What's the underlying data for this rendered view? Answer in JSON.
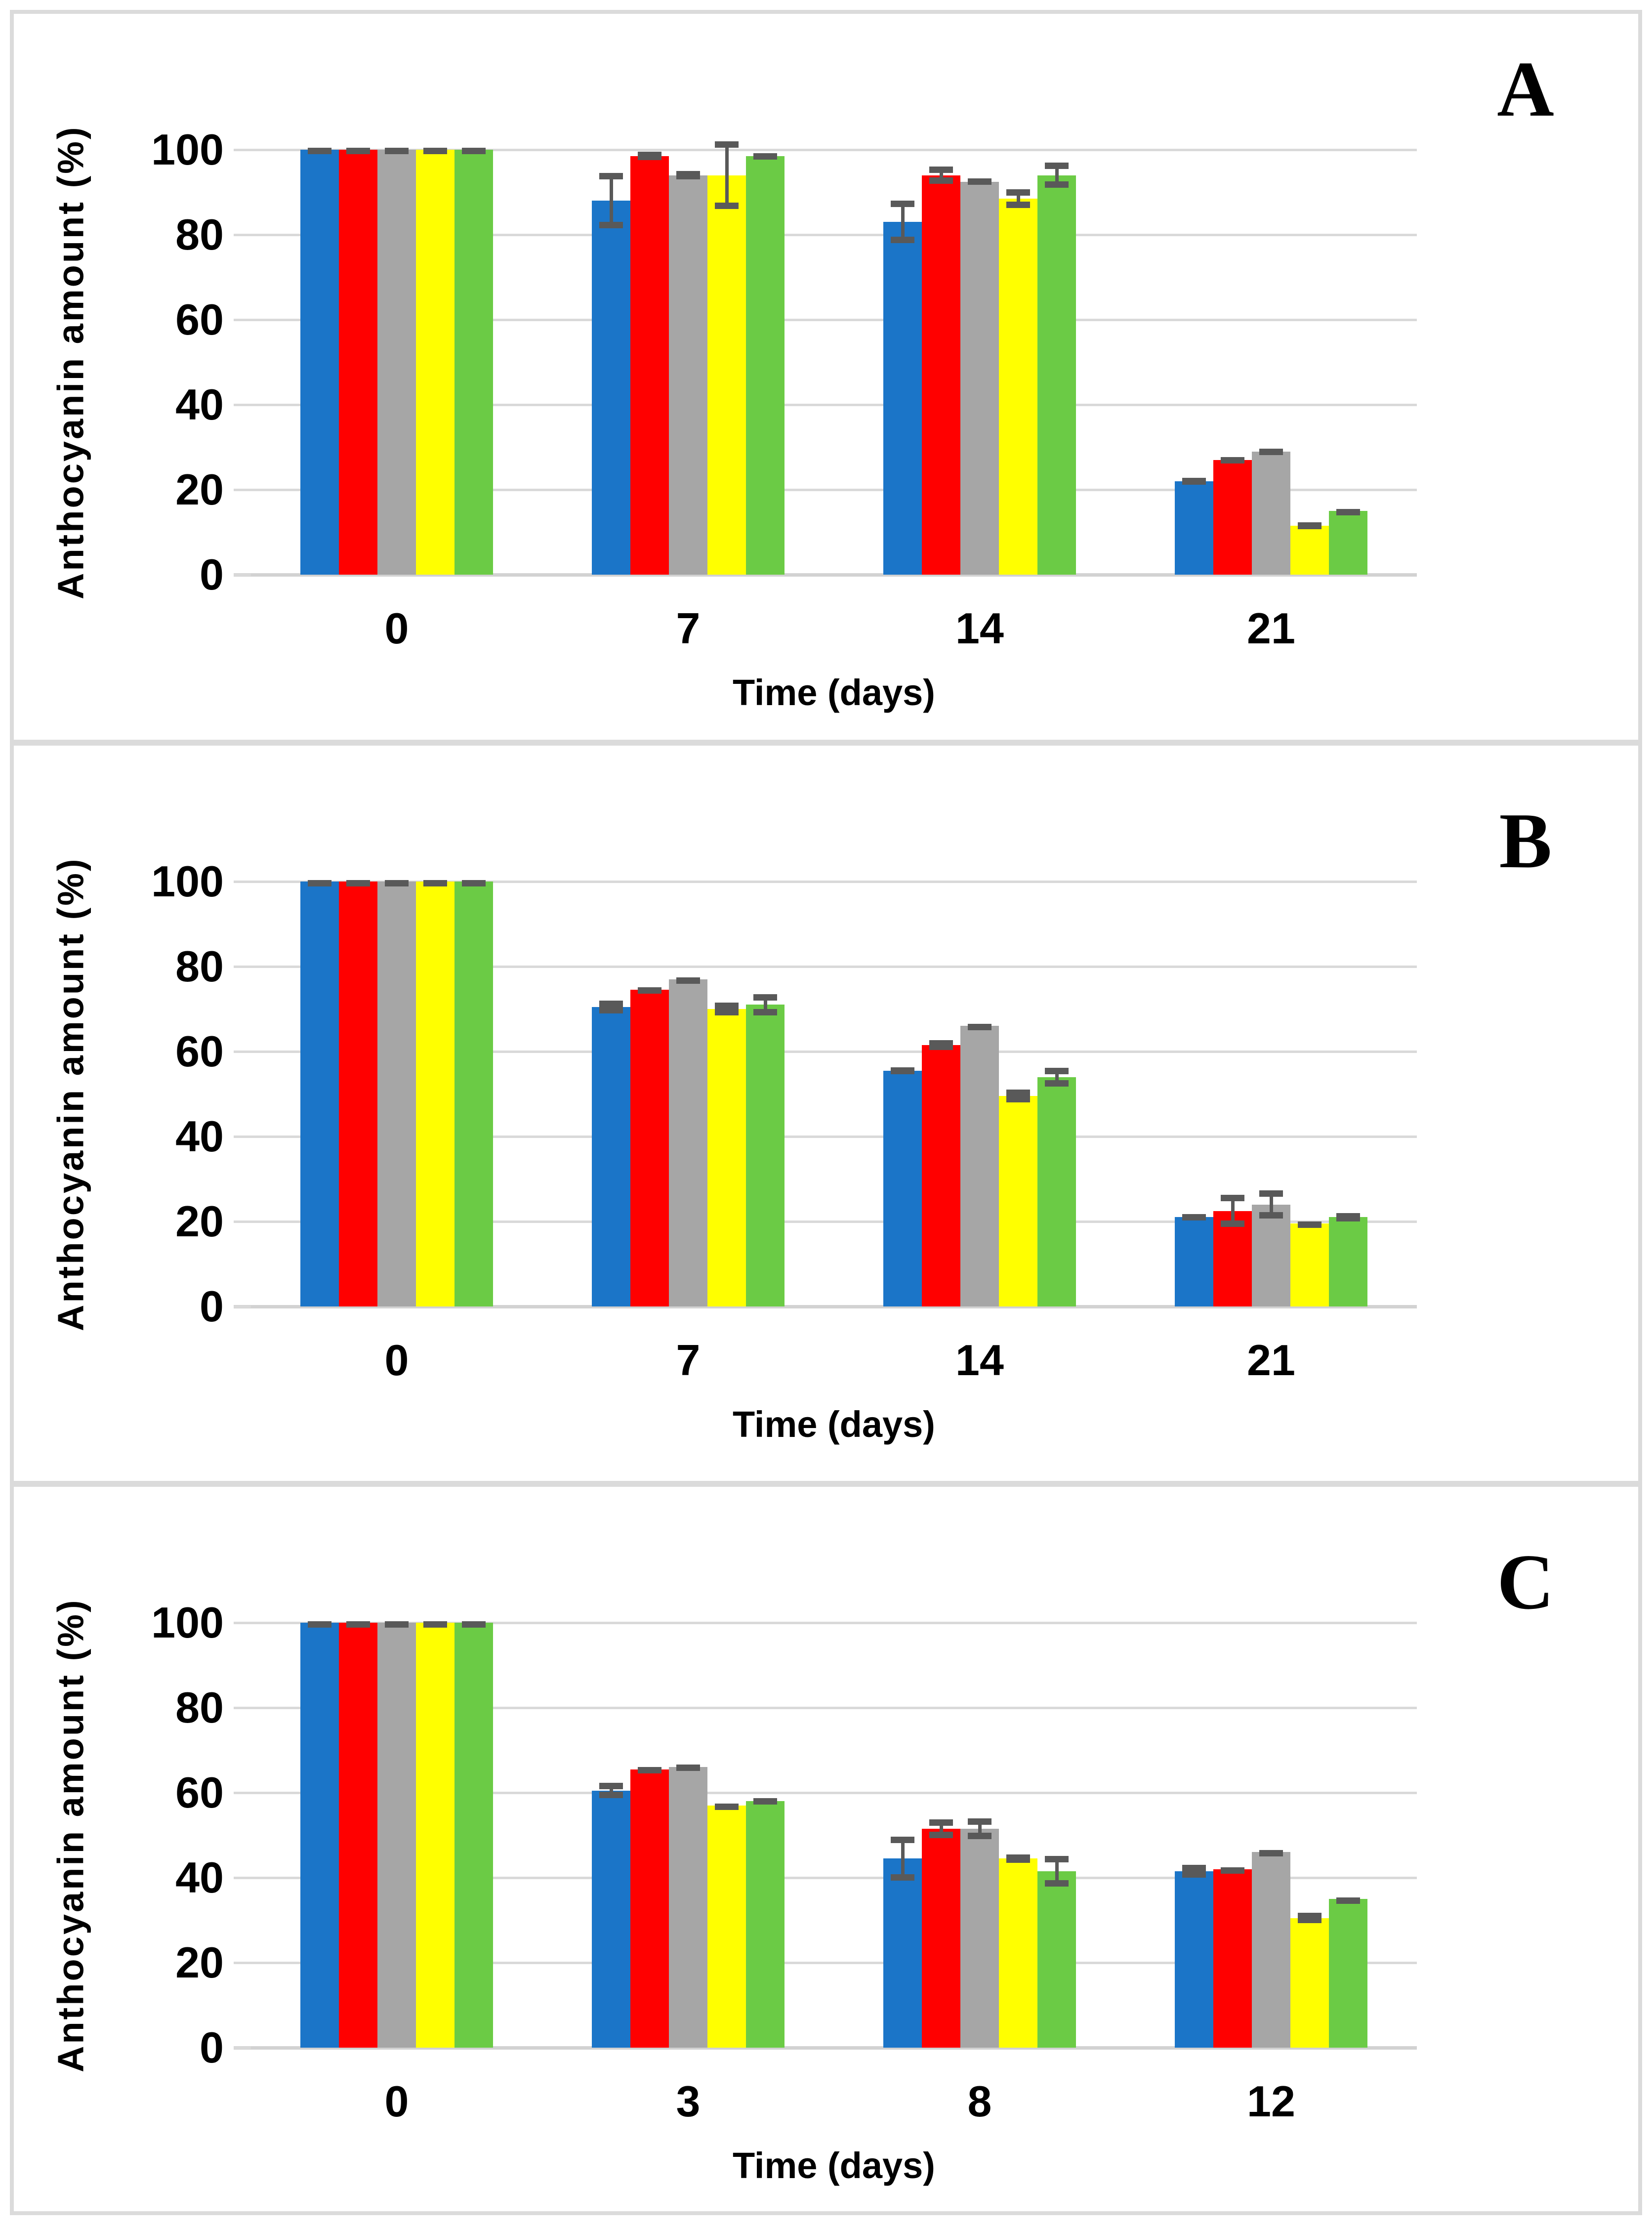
{
  "figure": {
    "frame_color": "#DBDBDB",
    "background": "#FFFFFF"
  },
  "styles": {
    "gridline_color": "#D9D9D9",
    "axis_line_color": "#D2D2D2",
    "error_bar_color": "#595959",
    "text_color": "#000000"
  },
  "chart_data": [
    {
      "type": "bar",
      "panel_label": "A",
      "title": "",
      "ylabel": "Anthocyanin amount (%)",
      "xlabel": "Time (days)",
      "ylim": [
        0,
        100
      ],
      "yticks": [
        0,
        20,
        40,
        60,
        80,
        100
      ],
      "grid": true,
      "legend": "none",
      "categories": [
        "0",
        "7",
        "14",
        "21"
      ],
      "series": [
        {
          "name": "blue",
          "color": "#1B75C8",
          "values": [
            100,
            88,
            83,
            22
          ],
          "errors": [
            0.5,
            6.5,
            5,
            0.8
          ]
        },
        {
          "name": "red",
          "color": "#FF0000",
          "values": [
            100,
            98.5,
            94,
            27
          ],
          "errors": [
            0.5,
            1,
            2,
            0.7
          ]
        },
        {
          "name": "gray",
          "color": "#A6A6A6",
          "values": [
            100,
            94,
            92.5,
            29
          ],
          "errors": [
            0.5,
            1,
            0.8,
            0.7
          ]
        },
        {
          "name": "yellow",
          "color": "#FFFF00",
          "values": [
            100,
            94,
            88.5,
            11.5
          ],
          "errors": [
            0.5,
            8,
            2.2,
            0.8
          ]
        },
        {
          "name": "green",
          "color": "#6BCB45",
          "values": [
            100,
            98.5,
            94,
            15
          ],
          "errors": [
            0.5,
            0.7,
            3,
            0.5
          ]
        }
      ]
    },
    {
      "type": "bar",
      "panel_label": "B",
      "title": "",
      "ylabel": "Anthocyanin amount (%)",
      "xlabel": "Time (days)",
      "ylim": [
        0,
        100
      ],
      "yticks": [
        0,
        20,
        40,
        60,
        80,
        100
      ],
      "grid": true,
      "legend": "none",
      "categories": [
        "0",
        "7",
        "14",
        "21"
      ],
      "series": [
        {
          "name": "blue",
          "color": "#1B75C8",
          "values": [
            100,
            70.5,
            55.5,
            21
          ],
          "errors": [
            0.4,
            1.5,
            0.8,
            0.8
          ]
        },
        {
          "name": "red",
          "color": "#FF0000",
          "values": [
            100,
            74.5,
            61.5,
            22.5
          ],
          "errors": [
            0.4,
            0.6,
            1.2,
            3.8
          ]
        },
        {
          "name": "gray",
          "color": "#A6A6A6",
          "values": [
            100,
            77,
            66,
            24
          ],
          "errors": [
            0.4,
            0.5,
            0.5,
            3.3
          ]
        },
        {
          "name": "yellow",
          "color": "#FFFF00",
          "values": [
            100,
            70,
            49.5,
            19.5
          ],
          "errors": [
            0.4,
            1.5,
            1.5,
            0.5
          ]
        },
        {
          "name": "green",
          "color": "#6BCB45",
          "values": [
            100,
            71,
            54,
            21
          ],
          "errors": [
            0.4,
            2.5,
            2.2,
            1
          ]
        }
      ]
    },
    {
      "type": "bar",
      "panel_label": "C",
      "title": "",
      "ylabel": "Anthocyanin amount (%)",
      "xlabel": "Time (days)",
      "ylim": [
        0,
        100
      ],
      "yticks": [
        0,
        20,
        40,
        60,
        80,
        100
      ],
      "grid": true,
      "legend": "none",
      "categories": [
        "0",
        "3",
        "8",
        "12"
      ],
      "series": [
        {
          "name": "blue",
          "color": "#1B75C8",
          "values": [
            100,
            60.5,
            44.5,
            41.5
          ],
          "errors": [
            0.4,
            1.8,
            5.2,
            1.5
          ]
        },
        {
          "name": "red",
          "color": "#FF0000",
          "values": [
            100,
            65.5,
            51.5,
            42
          ],
          "errors": [
            0.4,
            0.6,
            2.2,
            0.5
          ]
        },
        {
          "name": "gray",
          "color": "#A6A6A6",
          "values": [
            100,
            66,
            51.5,
            46
          ],
          "errors": [
            0.4,
            0.6,
            2.4,
            0.5
          ]
        },
        {
          "name": "yellow",
          "color": "#FFFF00",
          "values": [
            100,
            57,
            44.5,
            30.5
          ],
          "errors": [
            0.4,
            0.4,
            1,
            1.2
          ]
        },
        {
          "name": "green",
          "color": "#6BCB45",
          "values": [
            100,
            58,
            41.5,
            35
          ],
          "errors": [
            0.4,
            0.7,
            3.6,
            0.4
          ]
        }
      ]
    }
  ]
}
